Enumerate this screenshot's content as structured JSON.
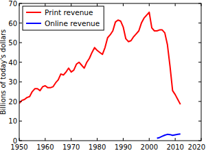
{
  "chart_data": {
    "type": "line",
    "y_label": "Billions of today's dollars",
    "x": [
      1950,
      1951,
      1952,
      1953,
      1954,
      1955,
      1956,
      1957,
      1958,
      1959,
      1960,
      1961,
      1962,
      1963,
      1964,
      1965,
      1966,
      1967,
      1968,
      1969,
      1970,
      1971,
      1972,
      1973,
      1974,
      1975,
      1976,
      1977,
      1978,
      1979,
      1980,
      1981,
      1982,
      1983,
      1984,
      1985,
      1986,
      1987,
      1988,
      1989,
      1990,
      1991,
      1992,
      1993,
      1994,
      1995,
      1996,
      1997,
      1998,
      1999,
      2000,
      2001,
      2002,
      2003,
      2004,
      2005,
      2006,
      2007,
      2008,
      2009,
      2010,
      2011,
      2012
    ],
    "series": [
      {
        "name": "Print revenue",
        "color": "#ff0000",
        "values": [
          19,
          20.5,
          21,
          22,
          22.5,
          25,
          26.5,
          26.5,
          25.5,
          27.5,
          28,
          27,
          27,
          27.5,
          29.5,
          31,
          34,
          33.5,
          35,
          37,
          35,
          36,
          39,
          40,
          38.5,
          37,
          40,
          42,
          45,
          47.5,
          46,
          45,
          44,
          47.5,
          52.5,
          54,
          56,
          60.5,
          61.5,
          61,
          58,
          52,
          50.5,
          51,
          53,
          54.5,
          56,
          60,
          62.5,
          64,
          65.5,
          57.5,
          56,
          56,
          56.5,
          56.5,
          55,
          49,
          38,
          25.5,
          23.5,
          21,
          18.5
        ]
      },
      {
        "name": "Online revenue",
        "color": "#0000ff",
        "values": [
          null,
          null,
          null,
          null,
          null,
          null,
          null,
          null,
          null,
          null,
          null,
          null,
          null,
          null,
          null,
          null,
          null,
          null,
          null,
          null,
          null,
          null,
          null,
          null,
          null,
          null,
          null,
          null,
          null,
          null,
          null,
          null,
          null,
          null,
          null,
          null,
          null,
          null,
          null,
          null,
          null,
          null,
          null,
          null,
          null,
          null,
          null,
          null,
          null,
          null,
          null,
          null,
          null,
          1.2,
          1.6,
          2.2,
          2.8,
          3.2,
          3.1,
          2.7,
          3.0,
          3.2,
          3.4
        ]
      }
    ],
    "xlim": [
      1950,
      2020
    ],
    "xticks": [
      1950,
      1960,
      1970,
      1980,
      1990,
      2000,
      2010,
      2020
    ],
    "ylim": [
      0,
      70
    ],
    "yticks": [
      0,
      10,
      20,
      30,
      40,
      50,
      60,
      70
    ],
    "grid": false,
    "legend": "upper left"
  }
}
